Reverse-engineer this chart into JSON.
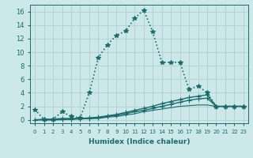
{
  "xlabel": "Humidex (Indice chaleur)",
  "background_color": "#cce8e8",
  "grid_color": "#aacccc",
  "line_color": "#1a6b6b",
  "xlim": [
    -0.5,
    23.5
  ],
  "ylim": [
    -0.5,
    17
  ],
  "xtick_labels": [
    "0",
    "1",
    "2",
    "3",
    "4",
    "5",
    "6",
    "7",
    "8",
    "9",
    "10",
    "11",
    "12",
    "13",
    "14",
    "15",
    "16",
    "17",
    "18",
    "19",
    "20",
    "21",
    "22",
    "23"
  ],
  "ytick_vals": [
    0,
    2,
    4,
    6,
    8,
    10,
    12,
    14,
    16
  ],
  "series": [
    {
      "x": [
        0,
        1,
        2,
        3,
        4,
        5,
        6,
        7,
        8,
        9,
        10,
        11,
        12,
        13,
        14,
        15,
        16,
        17,
        18,
        19,
        20,
        21,
        22,
        23
      ],
      "y": [
        1.5,
        0.1,
        0.1,
        1.2,
        0.5,
        0.3,
        4.0,
        9.2,
        11.1,
        12.5,
        13.1,
        15.0,
        16.2,
        13.0,
        8.5,
        8.5,
        8.5,
        4.5,
        5.0,
        4.0,
        2.0,
        2.0,
        2.0,
        2.0
      ],
      "style": ":",
      "marker": "*",
      "markersize": 4,
      "linewidth": 1.2
    },
    {
      "x": [
        0,
        1,
        2,
        3,
        4,
        5,
        6,
        7,
        8,
        9,
        10,
        11,
        12,
        13,
        14,
        15,
        16,
        17,
        18,
        19,
        20,
        21,
        22,
        23
      ],
      "y": [
        0.0,
        0.1,
        0.1,
        0.2,
        0.2,
        0.2,
        0.3,
        0.4,
        0.6,
        0.8,
        1.1,
        1.4,
        1.7,
        2.0,
        2.4,
        2.7,
        3.0,
        3.3,
        3.5,
        3.7,
        2.0,
        2.0,
        2.0,
        2.0
      ],
      "style": "-",
      "marker": "+",
      "markersize": 5,
      "linewidth": 1.0
    },
    {
      "x": [
        0,
        1,
        2,
        3,
        4,
        5,
        6,
        7,
        8,
        9,
        10,
        11,
        12,
        13,
        14,
        15,
        16,
        17,
        18,
        19,
        20,
        21,
        22,
        23
      ],
      "y": [
        0.0,
        0.0,
        0.0,
        0.1,
        0.1,
        0.2,
        0.2,
        0.3,
        0.5,
        0.7,
        0.9,
        1.2,
        1.4,
        1.7,
        2.0,
        2.3,
        2.6,
        2.9,
        3.1,
        3.2,
        2.0,
        2.0,
        2.0,
        2.0
      ],
      "style": "-",
      "marker": "+",
      "markersize": 5,
      "linewidth": 1.0
    },
    {
      "x": [
        0,
        1,
        2,
        3,
        4,
        5,
        6,
        7,
        8,
        9,
        10,
        11,
        12,
        13,
        14,
        15,
        16,
        17,
        18,
        19,
        20,
        21,
        22,
        23
      ],
      "y": [
        0.0,
        0.0,
        0.0,
        0.0,
        0.1,
        0.1,
        0.2,
        0.2,
        0.4,
        0.5,
        0.7,
        0.9,
        1.2,
        1.4,
        1.6,
        1.8,
        2.0,
        2.1,
        2.2,
        2.2,
        2.0,
        2.0,
        2.0,
        2.0
      ],
      "style": "-",
      "marker": null,
      "markersize": 0,
      "linewidth": 0.8
    }
  ]
}
